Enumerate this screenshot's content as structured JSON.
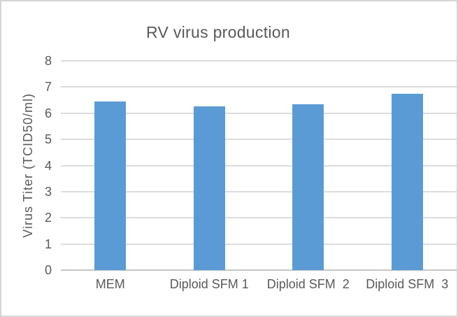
{
  "window": {
    "background": "#ffffff",
    "border_color": "#d5d5d5"
  },
  "chart_data": {
    "type": "bar",
    "title": "RV virus production",
    "xlabel": "",
    "ylabel": "Virus Titer (TCID50/ml)",
    "categories": [
      "MEM",
      "Diploid SFM 1",
      "Diploid SFM  2",
      "Diploid SFM  3"
    ],
    "values": [
      6.45,
      6.25,
      6.35,
      6.75
    ],
    "ylim": [
      0,
      8
    ],
    "yticks": [
      0,
      1,
      2,
      3,
      4,
      5,
      6,
      7,
      8
    ],
    "grid": true,
    "legend_position": "none",
    "colors": {
      "bar": "#5b9bd5",
      "gridline": "#dcdcdc",
      "axis_line": "#c6c6c6",
      "text": "#595959"
    }
  }
}
